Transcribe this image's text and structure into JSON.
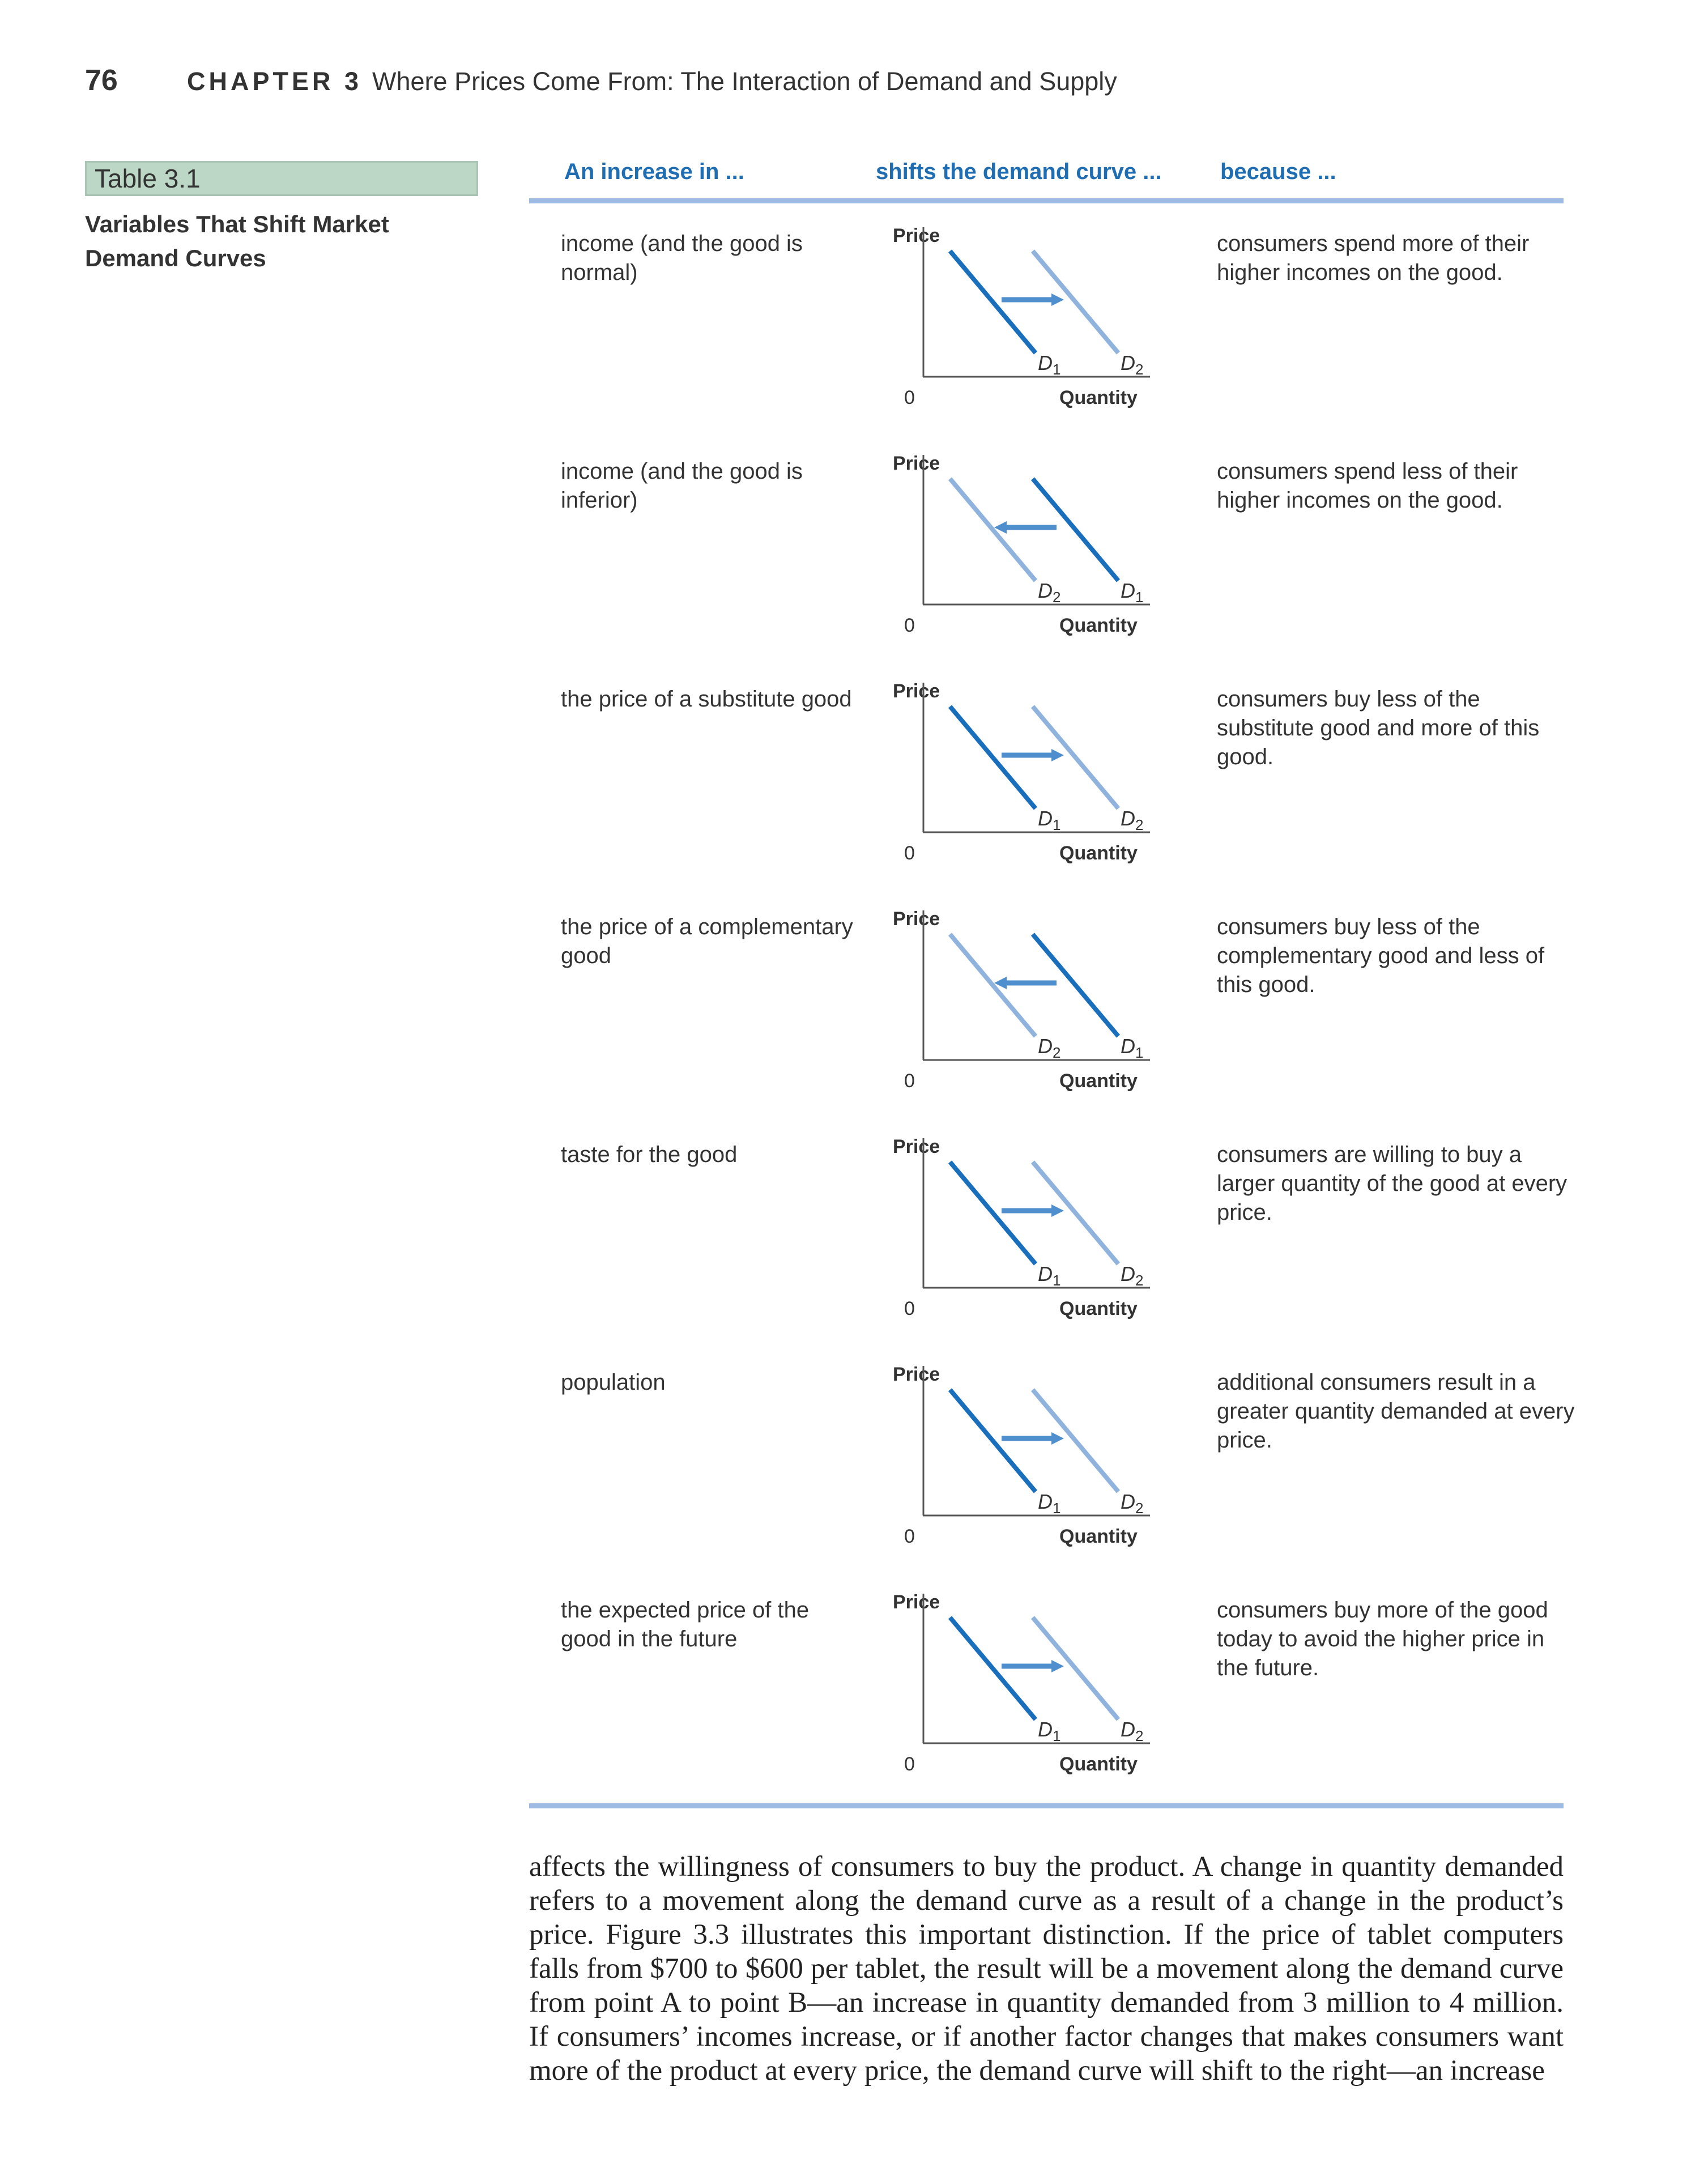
{
  "header": {
    "page_number": "76",
    "chapter_label": "CHAPTER 3",
    "chapter_title": "Where Prices Come From: The Interaction of Demand and Supply"
  },
  "table": {
    "label": "Table 3.1",
    "caption": "Variables That Shift Market Demand Curves",
    "column_headers": [
      "An increase in ...",
      "shifts the demand curve ...",
      "because ..."
    ],
    "rows": [
      {
        "cause": "income (and the good is normal)",
        "shift": "right",
        "y_label": "Price",
        "origin": "0",
        "x_label": "Quantity",
        "left_curve": {
          "letter": "D",
          "sub": "1"
        },
        "right_curve": {
          "letter": "D",
          "sub": "2"
        },
        "reason": "consumers spend more of their higher incomes on the good."
      },
      {
        "cause": "income (and the good is inferior)",
        "shift": "left",
        "y_label": "Price",
        "origin": "0",
        "x_label": "Quantity",
        "left_curve": {
          "letter": "D",
          "sub": "2"
        },
        "right_curve": {
          "letter": "D",
          "sub": "1"
        },
        "reason": "consumers spend less of their higher incomes on the good."
      },
      {
        "cause": "the price of a substitute good",
        "shift": "right",
        "y_label": "Price",
        "origin": "0",
        "x_label": "Quantity",
        "left_curve": {
          "letter": "D",
          "sub": "1"
        },
        "right_curve": {
          "letter": "D",
          "sub": "2"
        },
        "reason": "consumers buy less of the substitute good and more of this good."
      },
      {
        "cause": "the price of a complementary good",
        "shift": "left",
        "y_label": "Price",
        "origin": "0",
        "x_label": "Quantity",
        "left_curve": {
          "letter": "D",
          "sub": "2"
        },
        "right_curve": {
          "letter": "D",
          "sub": "1"
        },
        "reason": "consumers buy less of the complementary good and less of this good."
      },
      {
        "cause": "taste for the good",
        "shift": "right",
        "y_label": "Price",
        "origin": "0",
        "x_label": "Quantity",
        "left_curve": {
          "letter": "D",
          "sub": "1"
        },
        "right_curve": {
          "letter": "D",
          "sub": "2"
        },
        "reason": "consumers are willing to buy a larger quantity of the good at every price."
      },
      {
        "cause": "population",
        "shift": "right",
        "y_label": "Price",
        "origin": "0",
        "x_label": "Quantity",
        "left_curve": {
          "letter": "D",
          "sub": "1"
        },
        "right_curve": {
          "letter": "D",
          "sub": "2"
        },
        "reason": "additional consumers result in a greater quantity demanded at every price."
      },
      {
        "cause": "the expected price of the good in the future",
        "shift": "right",
        "y_label": "Price",
        "origin": "0",
        "x_label": "Quantity",
        "left_curve": {
          "letter": "D",
          "sub": "1"
        },
        "right_curve": {
          "letter": "D",
          "sub": "2"
        },
        "reason": "consumers buy more of the good today to avoid the higher price in the future."
      }
    ]
  },
  "colors": {
    "dark_blue": "#1a6fbd",
    "light_blue": "#8fb3dd",
    "arrow_blue": "#4f8fce",
    "header_blue": "#1f6db3",
    "rule_blue": "#9dbbe3",
    "label_green": "#bcd7c6"
  },
  "body_text": "affects the willingness of consumers to buy the product. A change in quantity demanded refers to a movement along the demand curve as a result of a change in the product’s price. Figure 3.3 illustrates this important distinction. If the price of tablet computers falls from $700 to $600 per tablet, the result will be a movement along the demand curve from point A to point B—an increase in quantity demanded from 3 million to 4 million. If consumers’ incomes increase, or if another factor changes that makes consumers want more of the product at every price, the demand curve will shift to the right—an increase"
}
